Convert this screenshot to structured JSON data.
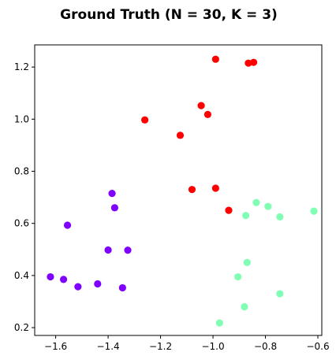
{
  "chart_data": {
    "type": "scatter",
    "title": "Ground Truth (N = 30, K = 3)",
    "xlabel": "",
    "ylabel": "",
    "xlim": [
      -1.68,
      -0.585
    ],
    "ylim": [
      0.17,
      1.285
    ],
    "xticks": [
      -1.6,
      -1.4,
      -1.2,
      -1.0,
      -0.8,
      -0.6
    ],
    "xtick_labels": [
      "−1.6",
      "−1.4",
      "−1.2",
      "−1.0",
      "−0.8",
      "−0.6"
    ],
    "yticks": [
      0.2,
      0.4,
      0.6,
      0.8,
      1.0,
      1.2
    ],
    "ytick_labels": [
      "0.2",
      "0.4",
      "0.6",
      "0.8",
      "1.0",
      "1.2"
    ],
    "grid": false,
    "series": [
      {
        "color": "#8000ff",
        "points": [
          [
            -1.62,
            0.395
          ],
          [
            -1.57,
            0.385
          ],
          [
            -1.515,
            0.357
          ],
          [
            -1.44,
            0.368
          ],
          [
            -1.345,
            0.353
          ],
          [
            -1.4,
            0.498
          ],
          [
            -1.325,
            0.497
          ],
          [
            -1.555,
            0.593
          ],
          [
            -1.375,
            0.66
          ],
          [
            -1.385,
            0.715
          ]
        ]
      },
      {
        "color": "#80ffb4",
        "points": [
          [
            -0.615,
            0.647
          ],
          [
            -0.745,
            0.625
          ],
          [
            -0.79,
            0.665
          ],
          [
            -0.835,
            0.68
          ],
          [
            -0.875,
            0.63
          ],
          [
            -0.87,
            0.45
          ],
          [
            -0.905,
            0.395
          ],
          [
            -0.745,
            0.33
          ],
          [
            -0.88,
            0.28
          ],
          [
            -0.975,
            0.218
          ]
        ]
      },
      {
        "color": "#ff0000",
        "points": [
          [
            -0.99,
            1.23
          ],
          [
            -0.865,
            1.215
          ],
          [
            -0.845,
            1.218
          ],
          [
            -1.045,
            1.052
          ],
          [
            -1.02,
            1.018
          ],
          [
            -1.26,
            0.997
          ],
          [
            -1.125,
            0.938
          ],
          [
            -1.08,
            0.73
          ],
          [
            -0.99,
            0.735
          ],
          [
            -0.94,
            0.65
          ]
        ]
      }
    ]
  }
}
